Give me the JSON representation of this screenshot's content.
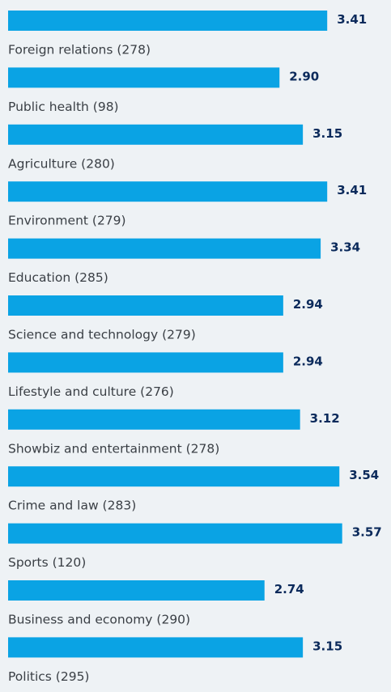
{
  "chart_data": {
    "type": "bar",
    "orientation": "horizontal",
    "categories": [
      "Foreign relations (278)",
      "Public health (98)",
      "Agriculture (280)",
      "Environment (279)",
      "Education (285)",
      "Science and technology (279)",
      "Lifestyle and culture (276)",
      "Showbiz and entertainment (278)",
      "Crime and law (283)",
      "Sports (120)",
      "Business and economy (290)",
      "Politics (295)"
    ],
    "values": [
      3.41,
      2.9,
      3.15,
      3.41,
      3.34,
      2.94,
      2.94,
      3.12,
      3.54,
      3.57,
      2.74,
      3.15
    ],
    "value_labels": [
      "3.41",
      "2.90",
      "3.15",
      "3.41",
      "3.34",
      "2.94",
      "2.94",
      "3.12",
      "3.54",
      "3.57",
      "2.74",
      "3.15"
    ],
    "color": "#0aa3e4"
  }
}
